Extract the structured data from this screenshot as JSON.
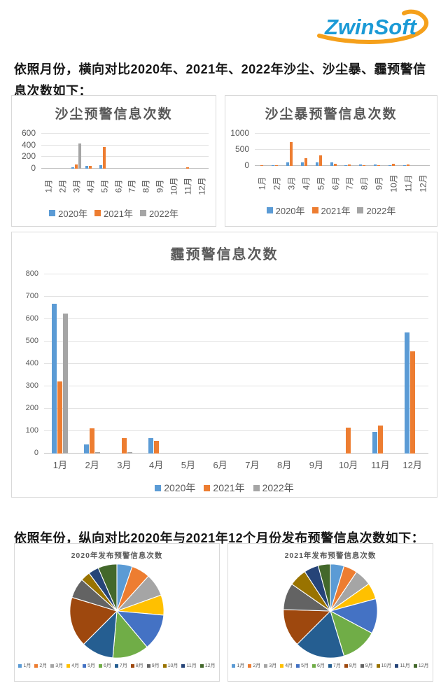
{
  "logo": {
    "text": "ZwinSoft",
    "text_color": "#1b9ad6",
    "swoosh_color": "#f5a01b"
  },
  "paragraphs": {
    "intro_monthly": "依照月份，横向对比2020年、2021年、2022年沙尘、沙尘暴、霾预警信息次数如下：",
    "intro_yearly": "依照年份，纵向对比2020年与2021年12个月份发布预警信息次数如下："
  },
  "months": [
    "1月",
    "2月",
    "3月",
    "4月",
    "5月",
    "6月",
    "7月",
    "8月",
    "9月",
    "10月",
    "11月",
    "12月"
  ],
  "year_colors": {
    "y2020": "#5B9BD5",
    "y2021": "#ED7D31",
    "y2022": "#A5A5A5"
  },
  "chart_data": [
    {
      "type": "bar",
      "title": "沙尘预警信息次数",
      "categories": [
        "1月",
        "2月",
        "3月",
        "4月",
        "5月",
        "6月",
        "7月",
        "8月",
        "9月",
        "10月",
        "11月",
        "12月"
      ],
      "series": [
        {
          "name": "2020年",
          "color": "#5B9BD5",
          "values": [
            0,
            0,
            25,
            45,
            55,
            0,
            0,
            0,
            0,
            0,
            0,
            0
          ]
        },
        {
          "name": "2021年",
          "color": "#ED7D31",
          "values": [
            0,
            0,
            70,
            45,
            370,
            0,
            0,
            0,
            0,
            0,
            20,
            0
          ]
        },
        {
          "name": "2022年",
          "color": "#A5A5A5",
          "values": [
            0,
            0,
            430,
            0,
            0,
            0,
            0,
            0,
            0,
            0,
            0,
            0
          ]
        }
      ],
      "ylim": [
        0,
        600
      ],
      "yticks": [
        0,
        200,
        400,
        600
      ],
      "grid": true,
      "legend_position": "bottom"
    },
    {
      "type": "bar",
      "title": "沙尘暴预警信息次数",
      "categories": [
        "1月",
        "2月",
        "3月",
        "4月",
        "5月",
        "6月",
        "7月",
        "8月",
        "9月",
        "10月",
        "11月",
        "12月"
      ],
      "series": [
        {
          "name": "2020年",
          "color": "#5B9BD5",
          "values": [
            0,
            25,
            110,
            115,
            100,
            110,
            30,
            50,
            35,
            30,
            30,
            0
          ]
        },
        {
          "name": "2021年",
          "color": "#ED7D31",
          "values": [
            25,
            30,
            750,
            240,
            320,
            65,
            35,
            25,
            30,
            60,
            50,
            0
          ]
        },
        {
          "name": "2022年",
          "color": "#A5A5A5",
          "values": [
            0,
            0,
            0,
            0,
            0,
            0,
            0,
            0,
            0,
            0,
            0,
            0
          ]
        }
      ],
      "ylim": [
        0,
        1000
      ],
      "yticks": [
        0,
        500,
        1000
      ],
      "grid": true,
      "legend_position": "bottom"
    },
    {
      "type": "bar",
      "title": "霾预警信息次数",
      "categories": [
        "1月",
        "2月",
        "3月",
        "4月",
        "5月",
        "6月",
        "7月",
        "8月",
        "9月",
        "10月",
        "11月",
        "12月"
      ],
      "series": [
        {
          "name": "2020年",
          "color": "#5B9BD5",
          "values": [
            668,
            40,
            0,
            68,
            0,
            0,
            0,
            0,
            0,
            0,
            98,
            540
          ]
        },
        {
          "name": "2021年",
          "color": "#ED7D31",
          "values": [
            322,
            113,
            68,
            55,
            0,
            0,
            0,
            0,
            0,
            117,
            126,
            455
          ]
        },
        {
          "name": "2022年",
          "color": "#A5A5A5",
          "values": [
            625,
            5,
            5,
            0,
            0,
            0,
            0,
            0,
            0,
            0,
            0,
            0
          ]
        }
      ],
      "ylim": [
        0,
        800
      ],
      "yticks": [
        0,
        100,
        200,
        300,
        400,
        500,
        600,
        700,
        800
      ],
      "grid": true,
      "legend_position": "bottom"
    },
    {
      "type": "pie",
      "title": "2020年发布预警信息次数",
      "labels": [
        "1月",
        "2月",
        "3月",
        "4月",
        "5月",
        "6月",
        "7月",
        "8月",
        "9月",
        "10月",
        "11月",
        "12月"
      ],
      "values_percent_estimated": [
        5.3,
        6.4,
        7.8,
        6.9,
        12.5,
        12.5,
        11.1,
        17.2,
        6.9,
        3.3,
        3.6,
        6.5
      ],
      "colors": [
        "#5B9BD5",
        "#ED7D31",
        "#A5A5A5",
        "#FFC000",
        "#4472C4",
        "#70AD47",
        "#255E91",
        "#9E480E",
        "#636363",
        "#997300",
        "#264478",
        "#43682B"
      ],
      "legend_position": "bottom"
    },
    {
      "type": "pie",
      "title": "2021年发布预警信息次数",
      "labels": [
        "1月",
        "2月",
        "3月",
        "4月",
        "5月",
        "6月",
        "7月",
        "8月",
        "9月",
        "10月",
        "11月",
        "12月"
      ],
      "values_percent_estimated": [
        4.7,
        4.7,
        5.8,
        5.6,
        12.0,
        12.5,
        17.2,
        13.0,
        9.2,
        6.1,
        5.0,
        4.2
      ],
      "colors": [
        "#5B9BD5",
        "#ED7D31",
        "#A5A5A5",
        "#FFC000",
        "#4472C4",
        "#70AD47",
        "#255E91",
        "#9E480E",
        "#636363",
        "#997300",
        "#264478",
        "#43682B"
      ],
      "legend_position": "bottom"
    }
  ]
}
